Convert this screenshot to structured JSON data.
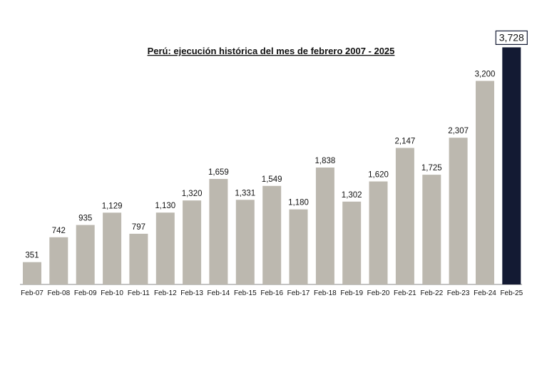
{
  "chart_data": {
    "type": "bar",
    "title": "Perú: ejecución histórica del mes de febrero 2007 - 2025",
    "categories": [
      "Feb-07",
      "Feb-08",
      "Feb-09",
      "Feb-10",
      "Feb-11",
      "Feb-12",
      "Feb-13",
      "Feb-14",
      "Feb-15",
      "Feb-16",
      "Feb-17",
      "Feb-18",
      "Feb-19",
      "Feb-20",
      "Feb-21",
      "Feb-22",
      "Feb-23",
      "Feb-24",
      "Feb-25"
    ],
    "values": [
      351,
      742,
      935,
      1129,
      797,
      1130,
      1320,
      1659,
      1331,
      1549,
      1180,
      1838,
      1302,
      1620,
      2147,
      1725,
      2307,
      3200,
      3728
    ],
    "value_labels": [
      "351",
      "742",
      "935",
      "1,129",
      "797",
      "1,130",
      "1,320",
      "1,659",
      "1,331",
      "1,549",
      "1,180",
      "1,838",
      "1,302",
      "1,620",
      "2,147",
      "1,725",
      "2,307",
      "3,200",
      "3,728"
    ],
    "ylim": [
      0,
      3800
    ],
    "grid": false,
    "colors": {
      "bar": "#bcb8af",
      "highlight": "#131a33",
      "axis": "#8a8a8a",
      "text": "#111111"
    },
    "highlight_index": 18
  }
}
